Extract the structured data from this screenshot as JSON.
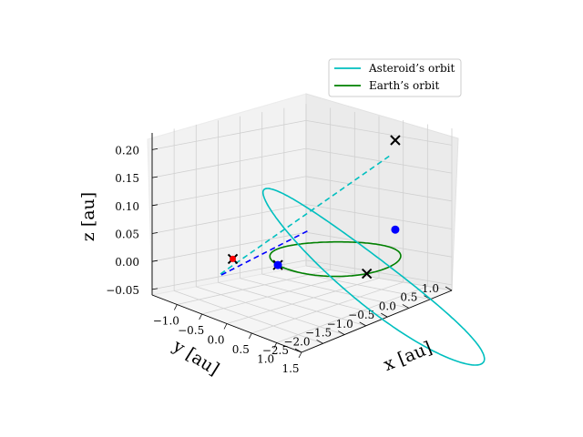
{
  "chart_data": {
    "type": "line3d",
    "view": "3d-perspective",
    "grid": true,
    "legend_position": "top-right",
    "axes": {
      "x": {
        "label": "x [au]",
        "range": [
          -1.5,
          1.5
        ],
        "ticks": [
          -1.0,
          -0.5,
          0.0,
          0.5,
          1.0,
          1.5
        ],
        "tick_labels": [
          "−1.0",
          "−0.5",
          "0.0",
          "0.5",
          "1.0",
          "1.5"
        ]
      },
      "y": {
        "label": "y [au]",
        "range": [
          -2.5,
          1.0
        ],
        "ticks": [
          1.0,
          0.5,
          0.0,
          -0.5,
          -1.0,
          -1.5,
          -2.0,
          -2.5
        ],
        "tick_labels": [
          "1.0",
          "0.5",
          "0.0",
          "−0.5",
          "−1.0",
          "−1.5",
          "−2.0",
          "−2.5"
        ]
      },
      "z": {
        "label": "z [au]",
        "range": [
          -0.06,
          0.23
        ],
        "ticks": [
          -0.05,
          0.0,
          0.05,
          0.1,
          0.15,
          0.2
        ],
        "tick_labels": [
          "−0.05",
          "0.00",
          "0.05",
          "0.10",
          "0.15",
          "0.20"
        ]
      }
    },
    "series": [
      {
        "name": "Asteroid's orbit",
        "color": "#00bfbf",
        "style": "ellipse",
        "semi_major_axis": 1.76,
        "eccentricity": 0.42,
        "inclination_deg": 5.4,
        "node_deg": 130,
        "peri_arg_deg": 128
      },
      {
        "name": "Earth's orbit",
        "color": "#008000",
        "style": "circle",
        "radius": 1.0,
        "z": 0.0
      }
    ],
    "markers": {
      "x_marks": [
        [
          -0.34,
          -0.94,
          0.0
        ],
        [
          0.94,
          -0.34,
          0.0
        ],
        [
          -0.98,
          -1.25,
          0.0
        ],
        [
          0.94,
          0.32,
          0.22
        ]
      ],
      "blue_points": [
        [
          -0.34,
          -0.94,
          0.0
        ],
        [
          0.94,
          0.32,
          0.06
        ]
      ],
      "red_point": [
        -0.98,
        -1.25,
        0.0
      ]
    }
  },
  "legend": {
    "asteroid_label": "Asteroid’s orbit",
    "earth_label": "Earth’s orbit",
    "asteroid_color": "#00bfbf",
    "earth_color": "#008000"
  }
}
